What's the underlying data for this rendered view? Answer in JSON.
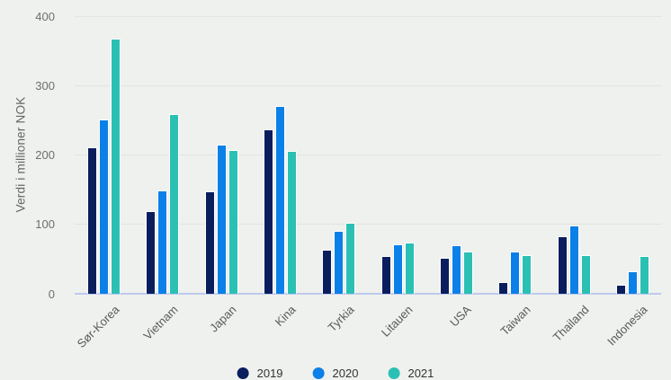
{
  "chart_data": {
    "type": "bar",
    "title": "",
    "xlabel": "",
    "ylabel": "Verdi i millioner NOK",
    "categories": [
      "Sør-Korea",
      "Vietnam",
      "Japan",
      "Kina",
      "Tyrkia",
      "Litauen",
      "USA",
      "Taiwan",
      "Thailand",
      "Indonesia"
    ],
    "series": [
      {
        "name": "2019",
        "color": "#0a1e5e",
        "values": [
          210,
          118,
          146,
          236,
          62,
          53,
          51,
          15,
          82,
          12
        ]
      },
      {
        "name": "2020",
        "color": "#0a80e8",
        "values": [
          250,
          147,
          214,
          269,
          89,
          70,
          68,
          60,
          97,
          31
        ]
      },
      {
        "name": "2021",
        "color": "#2bc0b4",
        "values": [
          367,
          257,
          206,
          204,
          101,
          72,
          59,
          55,
          55,
          53
        ]
      }
    ],
    "ylim": [
      0,
      400
    ],
    "yticks": [
      0,
      100,
      200,
      300,
      400
    ],
    "grid": true,
    "legend_position": "bottom"
  },
  "style": {
    "background": "#eff1ee",
    "gridline_color": "#e2e4e1",
    "axis_line_color": "#bfc8ee",
    "tick_text_color": "#6e6e6e",
    "category_text_color": "#595959",
    "axis_title_color": "#666666",
    "bar_outline_color": "#ffffff"
  }
}
